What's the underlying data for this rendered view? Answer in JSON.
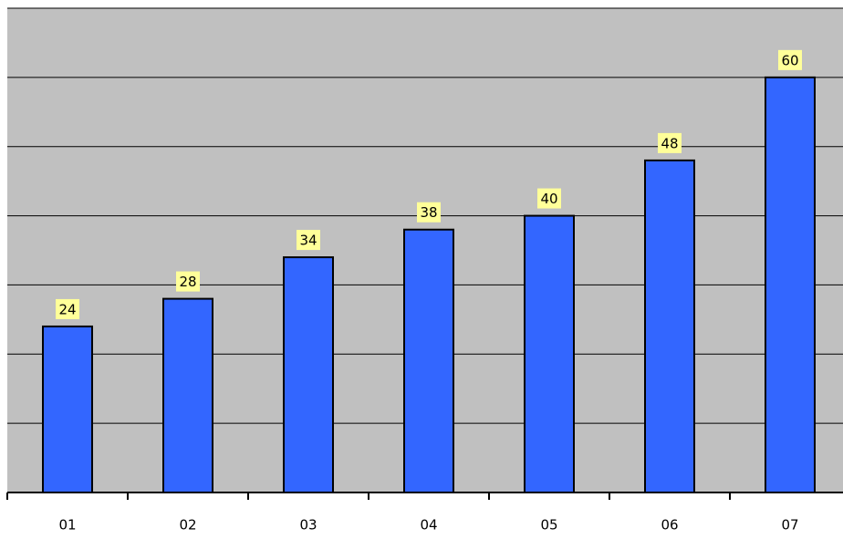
{
  "chart_data": {
    "type": "bar",
    "categories": [
      "01",
      "02",
      "03",
      "04",
      "05",
      "06",
      "07"
    ],
    "values": [
      24,
      28,
      34,
      38,
      40,
      48,
      60
    ],
    "color": "#3366ff",
    "ylim": [
      0,
      70
    ],
    "yticks": [
      0,
      10,
      20,
      30,
      40,
      50,
      60,
      70
    ],
    "grid": true
  }
}
